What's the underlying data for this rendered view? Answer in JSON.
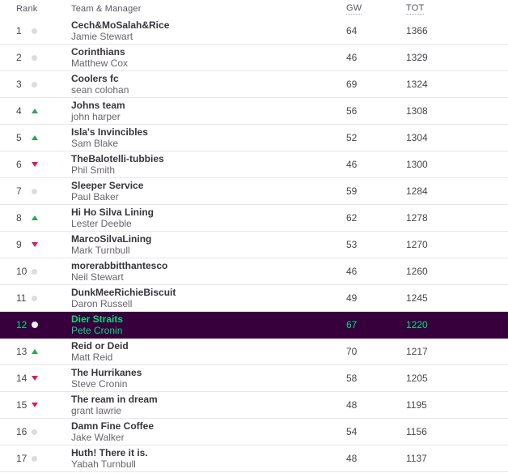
{
  "colors": {
    "highlight_bg": "#37003c",
    "highlight_text": "#00dc7e",
    "movement_up": "#28aa50",
    "movement_down": "#e0195e",
    "no_movement_dot": "#dcdcdc"
  },
  "table": {
    "headers": {
      "rank": "Rank",
      "team": "Team & Manager",
      "gw": "GW",
      "tot": "TOT"
    },
    "rows": [
      {
        "rank": "1",
        "movement": "same",
        "team": "Cech&MoSalah&Rice",
        "manager": "Jamie Stewart",
        "gw": "64",
        "tot": "1366",
        "highlighted": false
      },
      {
        "rank": "2",
        "movement": "same",
        "team": "Corinthians",
        "manager": "Matthew Cox",
        "gw": "46",
        "tot": "1329",
        "highlighted": false
      },
      {
        "rank": "3",
        "movement": "same",
        "team": "Coolers fc",
        "manager": "sean colohan",
        "gw": "69",
        "tot": "1324",
        "highlighted": false
      },
      {
        "rank": "4",
        "movement": "up",
        "team": "Johns team",
        "manager": "john harper",
        "gw": "56",
        "tot": "1308",
        "highlighted": false
      },
      {
        "rank": "5",
        "movement": "up",
        "team": "Isla's Invincibles",
        "manager": "Sam Blake",
        "gw": "52",
        "tot": "1304",
        "highlighted": false
      },
      {
        "rank": "6",
        "movement": "down",
        "team": "TheBalotelli-tubbies",
        "manager": "Phil Smith",
        "gw": "46",
        "tot": "1300",
        "highlighted": false
      },
      {
        "rank": "7",
        "movement": "same",
        "team": "Sleeper Service",
        "manager": "Paul Baker",
        "gw": "59",
        "tot": "1284",
        "highlighted": false
      },
      {
        "rank": "8",
        "movement": "up",
        "team": "Hi Ho Silva Lining",
        "manager": "Lester Deeble",
        "gw": "62",
        "tot": "1278",
        "highlighted": false
      },
      {
        "rank": "9",
        "movement": "down",
        "team": "MarcoSilvaLining",
        "manager": "Mark Turnbull",
        "gw": "53",
        "tot": "1270",
        "highlighted": false
      },
      {
        "rank": "10",
        "movement": "same",
        "team": "morerabbitthantesco",
        "manager": "Neil Stewart",
        "gw": "46",
        "tot": "1260",
        "highlighted": false
      },
      {
        "rank": "11",
        "movement": "same",
        "team": "DunkMeeRichieBiscuit",
        "manager": "Daron Russell",
        "gw": "49",
        "tot": "1245",
        "highlighted": false
      },
      {
        "rank": "12",
        "movement": "same",
        "team": "Dier Straits",
        "manager": "Pete Cronin",
        "gw": "67",
        "tot": "1220",
        "highlighted": true
      },
      {
        "rank": "13",
        "movement": "up",
        "team": "Reid or Deid",
        "manager": "Matt Reid",
        "gw": "70",
        "tot": "1217",
        "highlighted": false
      },
      {
        "rank": "14",
        "movement": "down",
        "team": "The Hurrikanes",
        "manager": "Steve Cronin",
        "gw": "58",
        "tot": "1205",
        "highlighted": false
      },
      {
        "rank": "15",
        "movement": "down",
        "team": "The ream in dream",
        "manager": "grant lawrie",
        "gw": "48",
        "tot": "1195",
        "highlighted": false
      },
      {
        "rank": "16",
        "movement": "same",
        "team": "Damn Fine Coffee",
        "manager": "Jake Walker",
        "gw": "54",
        "tot": "1156",
        "highlighted": false
      },
      {
        "rank": "17",
        "movement": "same",
        "team": "Huth! There it is.",
        "manager": "Yabah Turnbull",
        "gw": "48",
        "tot": "1137",
        "highlighted": false
      }
    ]
  }
}
